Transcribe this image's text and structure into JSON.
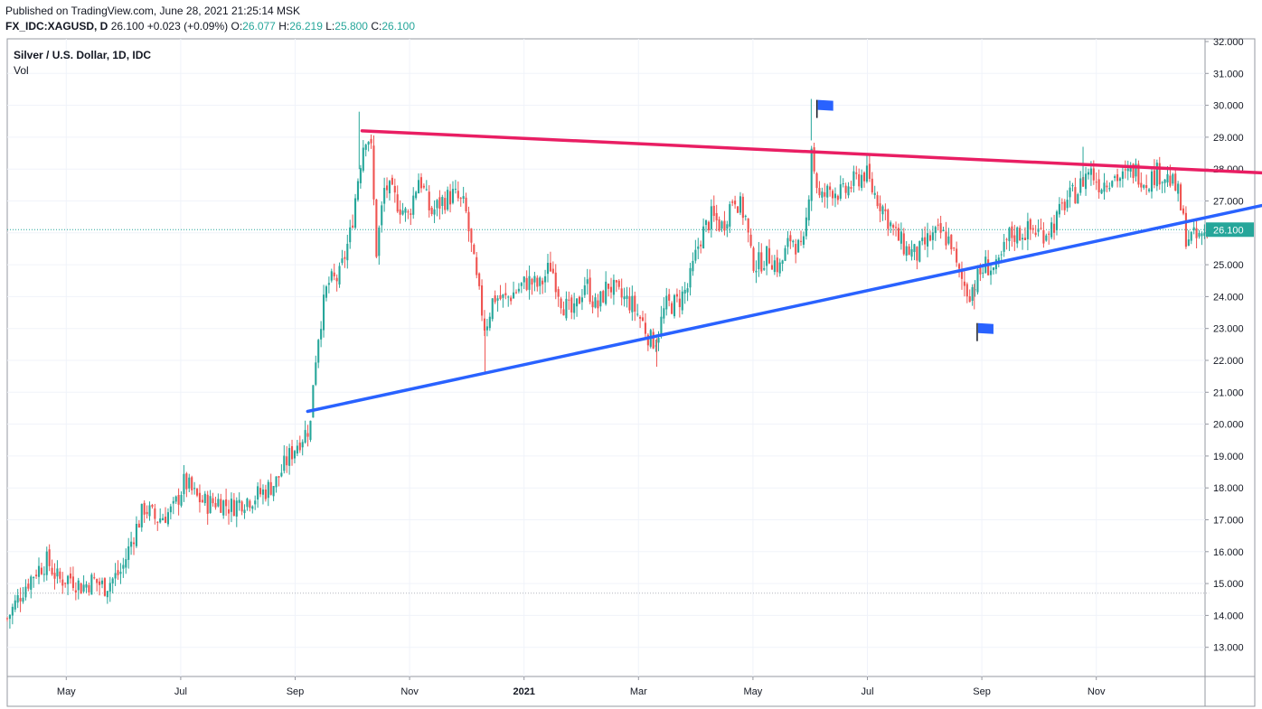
{
  "header": {
    "published": "Published on TradingView.com, June 28, 2021 21:25:14 MSK",
    "symbol": "FX_IDC:XAGUSD, D",
    "last": "26.100",
    "change": "+0.023 (+0.09%)",
    "o_label": "O:",
    "o_val": "26.077",
    "h_label": "H:",
    "h_val": "26.219",
    "l_label": "L:",
    "l_val": "25.800",
    "c_label": "C:",
    "c_val": "26.100"
  },
  "legend": {
    "title": "Silver / U.S. Dollar, 1D, IDC",
    "volume": "Vol"
  },
  "chart_data": {
    "type": "candlestick",
    "y_axis": {
      "range": [
        12.0,
        32.0
      ],
      "ticks": [
        "13.000",
        "14.000",
        "15.000",
        "16.000",
        "17.000",
        "18.000",
        "19.000",
        "20.000",
        "21.000",
        "22.000",
        "23.000",
        "24.000",
        "25.000",
        "26.000",
        "27.000",
        "28.000",
        "29.000",
        "30.000",
        "31.000",
        "32.000"
      ],
      "side": "right"
    },
    "x_axis": {
      "labels": [
        "May",
        "Jul",
        "Sep",
        "Nov",
        "2021",
        "Mar",
        "May",
        "Jul",
        "Sep",
        "Nov"
      ],
      "range_months": [
        0,
        20.3
      ],
      "tick_months": [
        1,
        3,
        5,
        7,
        9,
        11,
        13,
        15,
        17,
        19
      ]
    },
    "last_price": 26.1,
    "last_price_label": "26.100",
    "up_color": "#26a69a",
    "down_color": "#ef5350",
    "dotted_level": 14.7,
    "path": [
      [
        0.0,
        13.9
      ],
      [
        0.3,
        14.9
      ],
      [
        0.5,
        15.4
      ],
      [
        0.7,
        15.7
      ],
      [
        0.9,
        15.1
      ],
      [
        1.1,
        15.2
      ],
      [
        1.3,
        14.9
      ],
      [
        1.5,
        15.1
      ],
      [
        1.7,
        14.9
      ],
      [
        2.0,
        15.4
      ],
      [
        2.2,
        16.5
      ],
      [
        2.4,
        17.4
      ],
      [
        2.6,
        17.0
      ],
      [
        2.9,
        17.3
      ],
      [
        3.1,
        18.2
      ],
      [
        3.3,
        17.7
      ],
      [
        3.5,
        17.5
      ],
      [
        3.7,
        17.6
      ],
      [
        3.9,
        17.4
      ],
      [
        4.1,
        17.6
      ],
      [
        4.3,
        17.7
      ],
      [
        4.5,
        17.9
      ],
      [
        4.7,
        18.2
      ],
      [
        4.9,
        18.9
      ],
      [
        5.1,
        19.5
      ],
      [
        5.2,
        19.7
      ],
      [
        5.3,
        20.0
      ],
      [
        5.35,
        21.5
      ],
      [
        5.45,
        23.0
      ],
      [
        5.6,
        24.4
      ],
      [
        5.8,
        24.6
      ],
      [
        6.0,
        26.0
      ],
      [
        6.15,
        28.0
      ],
      [
        6.25,
        29.1
      ],
      [
        6.35,
        28.9
      ],
      [
        6.45,
        25.4
      ],
      [
        6.6,
        27.5
      ],
      [
        6.8,
        27.0
      ],
      [
        7.0,
        26.5
      ],
      [
        7.2,
        27.8
      ],
      [
        7.4,
        26.6
      ],
      [
        7.6,
        27.0
      ],
      [
        7.8,
        27.2
      ],
      [
        8.0,
        26.8
      ],
      [
        8.2,
        24.5
      ],
      [
        8.35,
        23.0
      ],
      [
        8.5,
        24.0
      ],
      [
        8.7,
        23.9
      ],
      [
        8.9,
        24.2
      ],
      [
        9.1,
        24.5
      ],
      [
        9.3,
        24.3
      ],
      [
        9.5,
        25.0
      ],
      [
        9.7,
        23.8
      ],
      [
        9.9,
        23.4
      ],
      [
        10.1,
        24.5
      ],
      [
        10.3,
        23.6
      ],
      [
        10.5,
        24.4
      ],
      [
        10.7,
        24.0
      ],
      [
        10.9,
        23.8
      ],
      [
        11.1,
        23.2
      ],
      [
        11.25,
        22.6
      ],
      [
        11.35,
        22.7
      ],
      [
        11.5,
        23.7
      ],
      [
        11.7,
        23.8
      ],
      [
        11.9,
        24.3
      ],
      [
        12.1,
        25.8
      ],
      [
        12.3,
        26.5
      ],
      [
        12.5,
        26.2
      ],
      [
        12.7,
        27.2
      ],
      [
        12.9,
        26.5
      ],
      [
        13.0,
        25.2
      ],
      [
        13.1,
        25.0
      ],
      [
        13.3,
        25.3
      ],
      [
        13.5,
        24.9
      ],
      [
        13.7,
        25.9
      ],
      [
        13.9,
        25.3
      ],
      [
        14.0,
        27.0
      ],
      [
        14.05,
        28.9
      ],
      [
        14.1,
        28.0
      ],
      [
        14.2,
        27.0
      ],
      [
        14.4,
        27.4
      ],
      [
        14.6,
        27.2
      ],
      [
        14.8,
        27.6
      ],
      [
        15.0,
        27.9
      ],
      [
        15.1,
        27.4
      ],
      [
        15.3,
        26.8
      ],
      [
        15.5,
        26.0
      ],
      [
        15.7,
        25.5
      ],
      [
        15.9,
        25.3
      ],
      [
        16.1,
        25.8
      ],
      [
        16.3,
        26.0
      ],
      [
        16.5,
        25.7
      ],
      [
        16.6,
        24.8
      ],
      [
        16.8,
        24.1
      ],
      [
        16.9,
        24.4
      ],
      [
        17.1,
        25.0
      ],
      [
        17.3,
        24.8
      ],
      [
        17.5,
        25.9
      ],
      [
        17.7,
        26.0
      ],
      [
        17.9,
        26.1
      ],
      [
        18.1,
        26.0
      ],
      [
        18.3,
        26.3
      ],
      [
        18.5,
        27.0
      ],
      [
        18.7,
        27.3
      ],
      [
        18.9,
        28.0
      ],
      [
        19.1,
        27.5
      ],
      [
        19.3,
        27.8
      ],
      [
        19.5,
        27.7
      ],
      [
        19.7,
        28.0
      ],
      [
        19.9,
        27.6
      ],
      [
        20.1,
        27.9
      ],
      [
        20.3,
        27.7
      ],
      [
        20.45,
        27.3
      ],
      [
        20.6,
        25.9
      ],
      [
        20.8,
        25.8
      ],
      [
        21.0,
        26.1
      ]
    ],
    "spikes": [
      {
        "month": 6.15,
        "high": 29.8
      },
      {
        "month": 8.35,
        "low": 21.6
      },
      {
        "month": 11.35,
        "low": 21.8
      },
      {
        "month": 14.05,
        "high": 30.2
      },
      {
        "month": 16.9,
        "low": 23.6
      },
      {
        "month": 18.8,
        "high": 28.7
      }
    ],
    "trendlines": [
      {
        "from": [
          6.2,
          29.2
        ],
        "to": [
          24.1,
          27.7
        ],
        "color": "#e91e63"
      },
      {
        "from": [
          5.25,
          20.4
        ],
        "to": [
          24.1,
          27.7
        ],
        "color": "#2962ff"
      }
    ],
    "flags": [
      {
        "month": 14.15,
        "price": 30.0
      },
      {
        "month": 16.95,
        "price": 23.0
      }
    ]
  }
}
